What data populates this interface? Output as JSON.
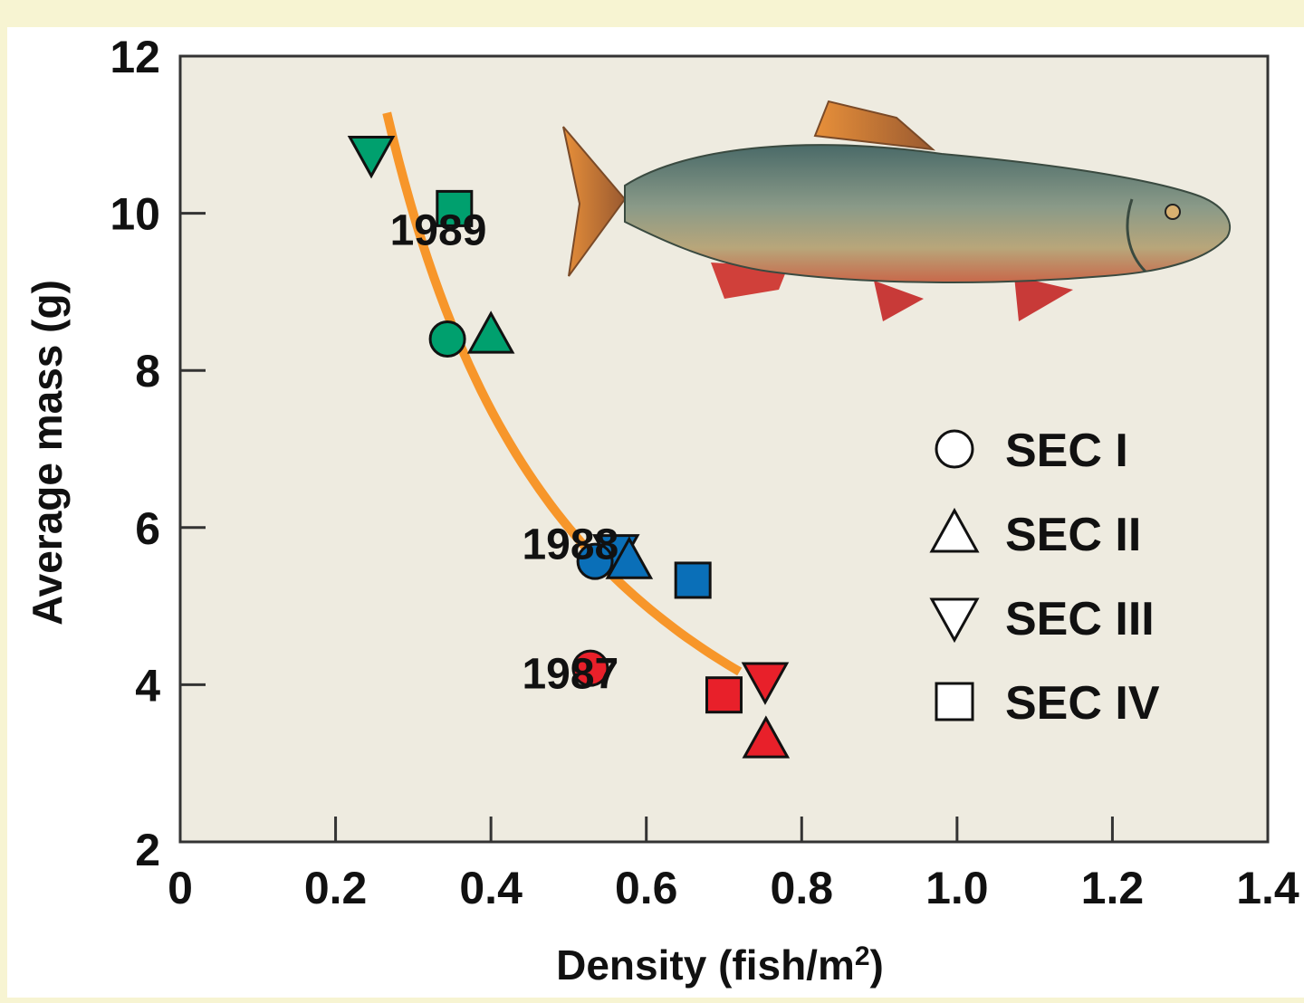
{
  "chart_data": {
    "type": "scatter",
    "title": "",
    "xlabel": "Density (fish/m",
    "xlabel_sup": "2",
    "xlabel_close": ")",
    "ylabel": "Average mass (g)",
    "xlim": [
      0,
      1.4
    ],
    "ylim": [
      2,
      12
    ],
    "xticks": [
      0,
      0.2,
      0.4,
      0.6,
      0.8,
      1.0,
      1.2,
      1.4
    ],
    "xtick_labels": [
      "0",
      "0.2",
      "0.4",
      "0.6",
      "0.8",
      "1.0",
      "1.2",
      "1.4"
    ],
    "yticks": [
      2,
      4,
      6,
      8,
      10,
      12
    ],
    "ytick_labels": [
      "2",
      "4",
      "6",
      "8",
      "10",
      "12"
    ],
    "grid": false,
    "legend_placement": "right",
    "legend": [
      {
        "name": "SEC I",
        "marker": "circle"
      },
      {
        "name": "SEC II",
        "marker": "triangle-up"
      },
      {
        "name": "SEC III",
        "marker": "triangle-down"
      },
      {
        "name": "SEC IV",
        "marker": "square"
      }
    ],
    "groups": [
      {
        "label": "1989",
        "color": "#00a06e",
        "label_at": [
          0.27,
          9.6
        ],
        "points": [
          {
            "sec": "SEC I",
            "x": 0.344,
            "y": 8.4
          },
          {
            "sec": "SEC II",
            "x": 0.4,
            "y": 8.45
          },
          {
            "sec": "SEC III",
            "x": 0.246,
            "y": 10.75
          },
          {
            "sec": "SEC IV",
            "x": 0.353,
            "y": 10.06
          }
        ]
      },
      {
        "label": "1988",
        "color": "#0a6fb8",
        "label_at": [
          0.44,
          5.6
        ],
        "points": [
          {
            "sec": "SEC III",
            "x": 0.561,
            "y": 5.68
          },
          {
            "sec": "SEC I",
            "x": 0.534,
            "y": 5.57
          },
          {
            "sec": "SEC II",
            "x": 0.578,
            "y": 5.58
          },
          {
            "sec": "SEC IV",
            "x": 0.66,
            "y": 5.33
          }
        ]
      },
      {
        "label": "1987",
        "color": "#e8202a",
        "label_at": [
          0.44,
          3.95
        ],
        "points": [
          {
            "sec": "SEC I",
            "x": 0.528,
            "y": 4.21
          },
          {
            "sec": "SEC II",
            "x": 0.754,
            "y": 3.3
          },
          {
            "sec": "SEC III",
            "x": 0.753,
            "y": 4.05
          },
          {
            "sec": "SEC IV",
            "x": 0.7,
            "y": 3.87
          }
        ]
      }
    ],
    "fit_curve": {
      "form": "y = 3/x",
      "x_range": [
        0.266,
        0.72
      ],
      "color": "#f7962a"
    },
    "plot_background": "#eeebe0",
    "image": "brook-trout-illustration"
  }
}
